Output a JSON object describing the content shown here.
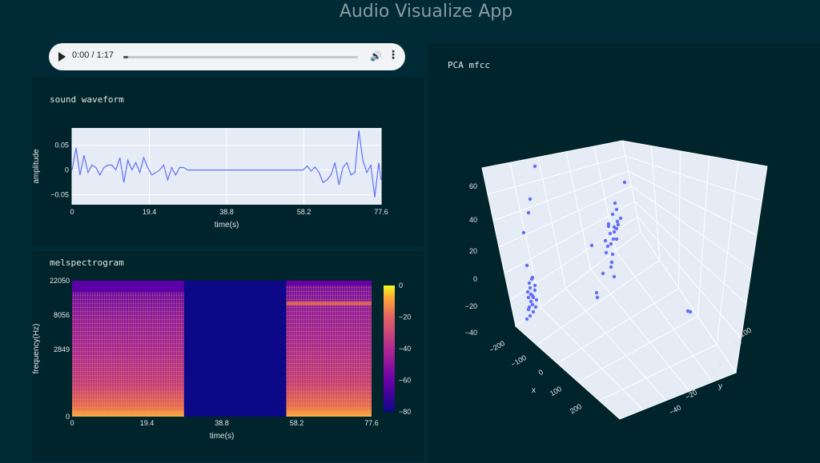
{
  "app": {
    "title": "Audio Visualize App"
  },
  "audio": {
    "time": "0:00 / 1:17",
    "progress": 0.02
  },
  "waveform": {
    "title": "sound waveform",
    "chart_data": {
      "type": "line",
      "xlabel": "time(s)",
      "ylabel": "amplitude",
      "xlim": [
        0,
        77.6
      ],
      "ylim": [
        -0.07,
        0.085
      ],
      "xticks": [
        "0",
        "19.4",
        "38.8",
        "58.2",
        "77.6"
      ],
      "yticks": [
        "0.05",
        "0",
        "−0.05"
      ],
      "x": [
        0,
        1,
        2,
        3,
        4,
        5,
        6,
        7,
        8,
        9,
        10,
        11,
        12,
        13,
        14,
        15,
        16,
        17,
        18,
        19,
        20,
        21,
        22,
        23,
        24,
        25,
        26,
        27,
        28,
        29,
        58,
        59,
        60,
        61,
        62,
        63,
        64,
        65,
        66,
        67,
        68,
        69,
        70,
        71,
        72,
        73,
        74,
        75,
        76,
        77,
        77.6
      ],
      "y": [
        0,
        0.045,
        -0.01,
        0.03,
        -0.005,
        0.01,
        0.005,
        -0.01,
        0.005,
        0.01,
        0.01,
        0,
        0.025,
        -0.025,
        0.02,
        0,
        0.015,
        -0.005,
        0.025,
        0.005,
        -0.01,
        -0.005,
        0,
        0.01,
        -0.02,
        0.005,
        -0.01,
        0.005,
        0.005,
        0,
        0,
        0.008,
        -0.002,
        0.006,
        -0.005,
        -0.025,
        -0.02,
        -0.01,
        0.015,
        -0.03,
        0.005,
        0.015,
        -0.01,
        -0.005,
        0.08,
        0.02,
        -0.005,
        0.01,
        -0.055,
        0.015,
        -0.02
      ]
    }
  },
  "melspec": {
    "title": "melspectrogram",
    "chart_data": {
      "type": "heatmap",
      "xlabel": "time(s)",
      "ylabel": "frequency(Hz)",
      "xticks": [
        "0",
        "19.4",
        "38.8",
        "58.2",
        "77.6"
      ],
      "yticks": [
        "22050",
        "8056",
        "2849",
        "0"
      ],
      "colorbar_ticks": [
        "0",
        "−20",
        "−40",
        "−60",
        "−80"
      ],
      "zlim": [
        -80,
        0
      ],
      "silent_range": [
        29,
        55.5
      ]
    }
  },
  "pca": {
    "title": "PCA mfcc",
    "chart_data": {
      "type": "scatter",
      "axes": {
        "x": {
          "label": "x",
          "ticks": [
            "−200",
            "−100",
            "0",
            "100",
            "200"
          ]
        },
        "y": {
          "label": "y",
          "ticks": [
            "100",
            "80",
            "60",
            "40",
            "20",
            "0",
            "−20",
            "−40"
          ]
        },
        "z": {
          "ticks": [
            "60",
            "40",
            "20",
            "0",
            "−20",
            "−40"
          ]
        }
      },
      "color": "#636efa"
    }
  }
}
